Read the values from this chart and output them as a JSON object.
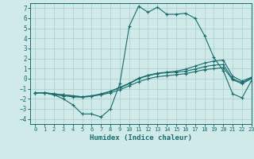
{
  "title": "",
  "xlabel": "Humidex (Indice chaleur)",
  "xlim": [
    -0.5,
    23
  ],
  "ylim": [
    -4.5,
    7.5
  ],
  "xticks": [
    0,
    1,
    2,
    3,
    4,
    5,
    6,
    7,
    8,
    9,
    10,
    11,
    12,
    13,
    14,
    15,
    16,
    17,
    18,
    19,
    20,
    21,
    22,
    23
  ],
  "yticks": [
    -4,
    -3,
    -2,
    -1,
    0,
    1,
    2,
    3,
    4,
    5,
    6,
    7
  ],
  "bg_color": "#d0eaea",
  "line_color": "#1a6b6b",
  "grid_color": "#b0d0d0",
  "line1_y": [
    -1.4,
    -1.4,
    -1.6,
    -2.0,
    -2.6,
    -3.5,
    -3.5,
    -3.8,
    -3.0,
    -0.5,
    5.2,
    7.2,
    6.6,
    7.1,
    6.4,
    6.4,
    6.5,
    6.0,
    4.3,
    2.1,
    0.8,
    -1.5,
    -1.9,
    -0.2
  ],
  "line2_y": [
    -1.4,
    -1.4,
    -1.6,
    -1.7,
    -1.8,
    -1.85,
    -1.75,
    -1.55,
    -1.25,
    -0.85,
    -0.45,
    0.05,
    0.35,
    0.55,
    0.65,
    0.75,
    0.95,
    1.25,
    1.55,
    1.75,
    1.85,
    0.25,
    -0.25,
    0.15
  ],
  "line3_y": [
    -1.4,
    -1.4,
    -1.5,
    -1.6,
    -1.7,
    -1.8,
    -1.7,
    -1.6,
    -1.4,
    -1.1,
    -0.7,
    -0.3,
    0.0,
    0.2,
    0.3,
    0.4,
    0.5,
    0.7,
    0.9,
    1.0,
    1.1,
    -0.1,
    -0.5,
    0.0
  ],
  "line4_y": [
    -1.4,
    -1.4,
    -1.5,
    -1.6,
    -1.7,
    -1.8,
    -1.7,
    -1.5,
    -1.25,
    -0.9,
    -0.5,
    0.0,
    0.3,
    0.5,
    0.6,
    0.65,
    0.75,
    0.95,
    1.2,
    1.35,
    1.4,
    -0.0,
    -0.4,
    0.1
  ]
}
